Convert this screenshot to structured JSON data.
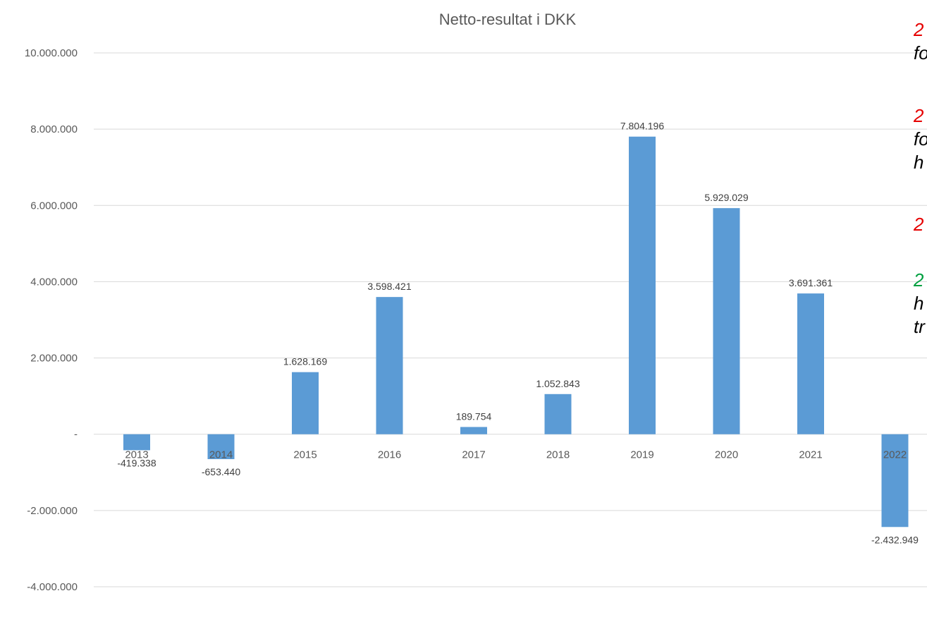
{
  "chart_data": {
    "type": "bar",
    "title": "Netto-resultat i DKK",
    "xlabel": "",
    "ylabel": "",
    "categories": [
      "2013",
      "2014",
      "2015",
      "2016",
      "2017",
      "2018",
      "2019",
      "2020",
      "2021",
      "2022"
    ],
    "values": [
      -419338,
      -653440,
      1628169,
      3598421,
      189754,
      1052843,
      7804196,
      5929029,
      3691361,
      -2432949
    ],
    "data_labels": [
      "-419.338",
      "-653.440",
      "1.628.169",
      "3.598.421",
      "189.754",
      "1.052.843",
      "7.804.196",
      "5.929.029",
      "3.691.361",
      "-2.432.949"
    ],
    "ylim": [
      -4000000,
      10000000
    ],
    "yticks": [
      -4000000,
      -2000000,
      0,
      2000000,
      4000000,
      6000000,
      8000000,
      10000000
    ],
    "ytick_labels": [
      "-4.000.000",
      "-2.000.000",
      "-",
      "2.000.000",
      "4.000.000",
      "6.000.000",
      "8.000.000",
      "10.000.000"
    ],
    "grid": true,
    "legend": "none",
    "bar_color": "#5b9bd5"
  },
  "side_notes": [
    {
      "lines": [
        {
          "text": "2",
          "color": "#e60000",
          "bold": true
        },
        {
          "text": "fo",
          "color": "#000000",
          "bold": false
        }
      ]
    },
    {
      "lines": [
        {
          "text": "2",
          "color": "#e60000",
          "bold": true
        },
        {
          "text": "fo",
          "color": "#000000",
          "bold": false
        },
        {
          "text": "h",
          "color": "#000000",
          "bold": false
        }
      ]
    },
    {
      "lines": [
        {
          "text": "2",
          "color": "#e60000",
          "bold": true
        }
      ]
    },
    {
      "lines": [
        {
          "text": "2",
          "color": "#00a040",
          "bold": true
        },
        {
          "text": "h",
          "color": "#000000",
          "bold": false
        },
        {
          "text": "tr",
          "color": "#000000",
          "bold": false
        }
      ]
    }
  ]
}
